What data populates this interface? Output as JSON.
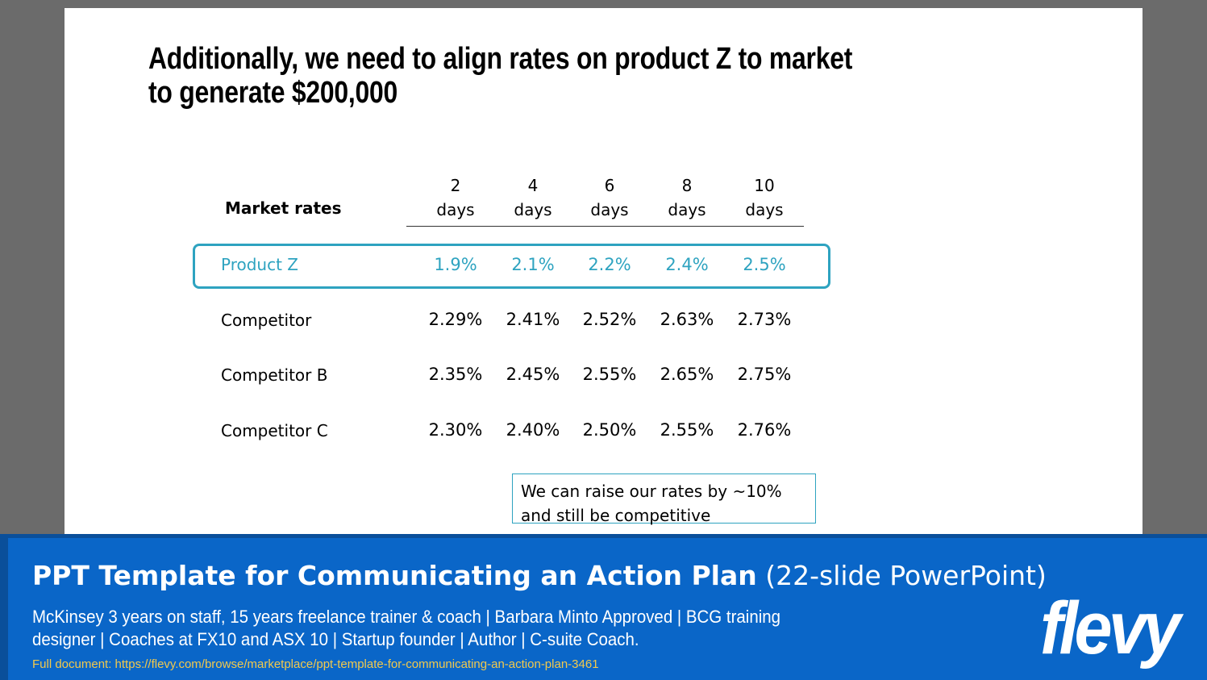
{
  "slide": {
    "title": "Additionally, we need to align rates on product Z to market to generate $200,000",
    "table": {
      "header_label": "Market rates",
      "columns": [
        {
          "num": "2",
          "unit": "days"
        },
        {
          "num": "4",
          "unit": "days"
        },
        {
          "num": "6",
          "unit": "days"
        },
        {
          "num": "8",
          "unit": "days"
        },
        {
          "num": "10",
          "unit": "days"
        }
      ],
      "rows": [
        {
          "label": "Product Z",
          "values": [
            "1.9%",
            "2.1%",
            "2.2%",
            "2.4%",
            "2.5%"
          ],
          "highlighted": true
        },
        {
          "label": "Competitor",
          "values": [
            "2.29%",
            "2.41%",
            "2.52%",
            "2.63%",
            "2.73%"
          ]
        },
        {
          "label": "Competitor B",
          "values": [
            "2.35%",
            "2.45%",
            "2.55%",
            "2.65%",
            "2.75%"
          ]
        },
        {
          "label": "Competitor C",
          "values": [
            "2.30%",
            "2.40%",
            "2.50%",
            "2.55%",
            "2.76%"
          ]
        }
      ]
    },
    "note": "We can raise our rates by ~10% and still be competitive",
    "colors": {
      "accent": "#2ea3c0"
    }
  },
  "footer": {
    "title_bold": "PPT Template for Communicating an Action Plan",
    "title_sub": "(22-slide PowerPoint)",
    "description": "McKinsey 3 years on staff, 15 years freelance trainer & coach | Barbara Minto Approved | BCG training designer | Coaches at FX10 and ASX 10 | Startup founder | Author | C-suite Coach.",
    "link": "Full document: https://flevy.com/browse/marketplace/ppt-template-for-communicating-an-action-plan-3461",
    "logo_text": "flevy",
    "colors": {
      "background": "#0a66c8",
      "link": "#f2c94c"
    }
  }
}
